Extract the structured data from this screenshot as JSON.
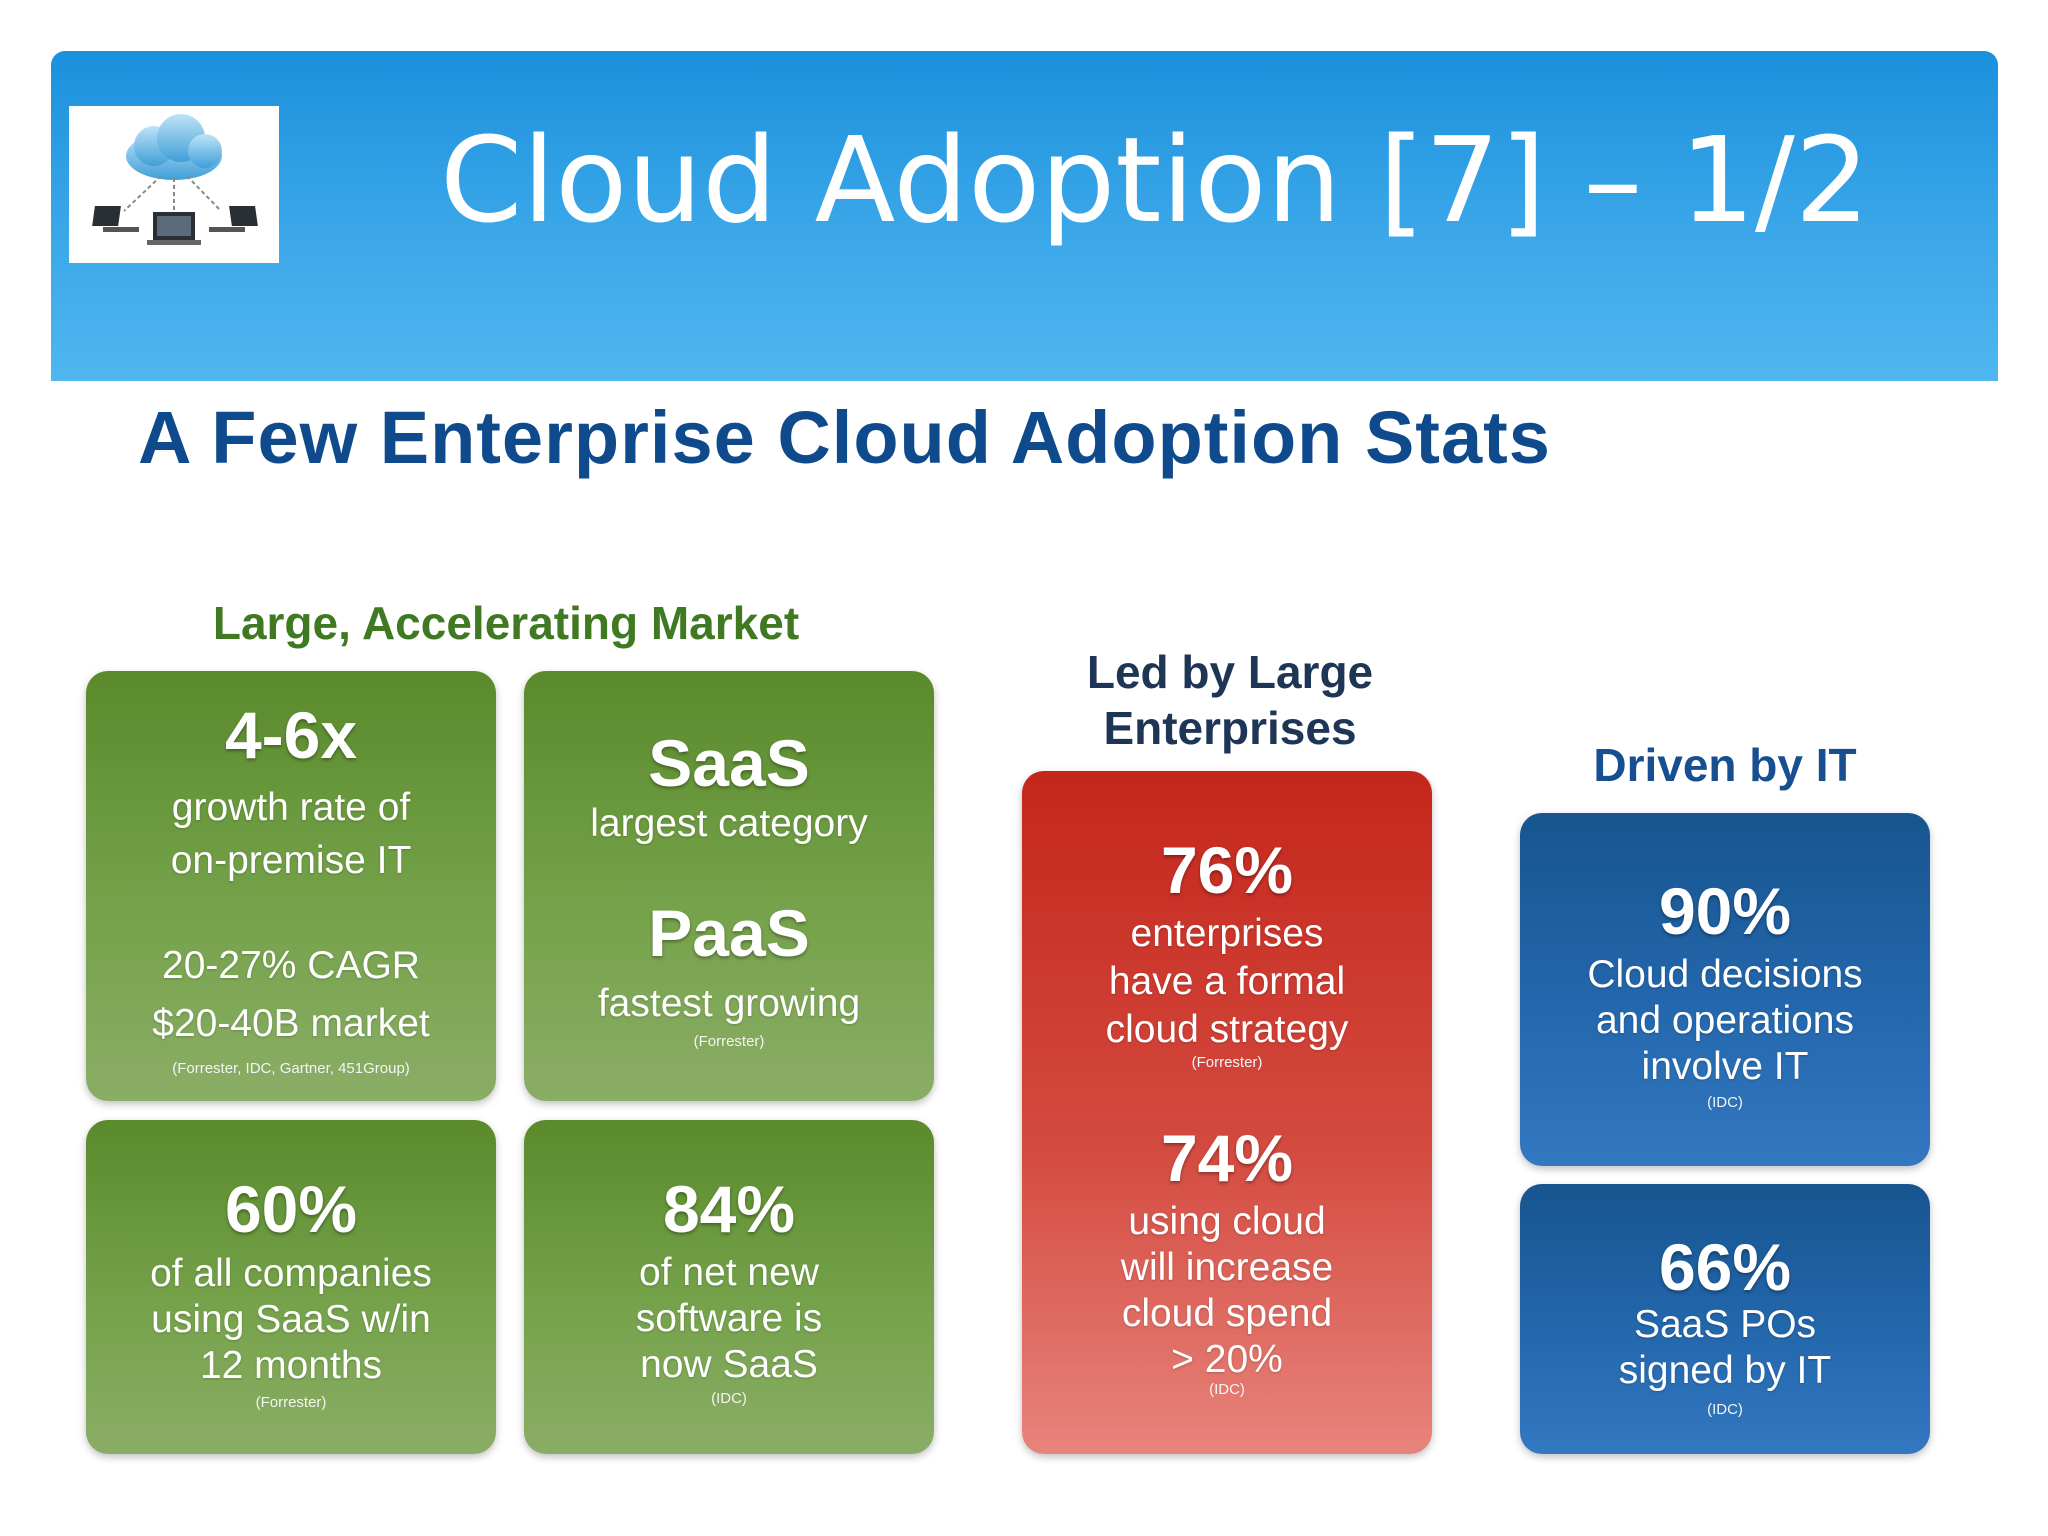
{
  "slide": {
    "title": "Cloud Adoption [7] – 1/2",
    "logo_icon": "cloud-network-icon"
  },
  "infographic": {
    "title": "A Few Enterprise Cloud Adoption Stats",
    "sections": {
      "market": {
        "heading": "Large, Accelerating Market"
      },
      "enterprises": {
        "heading_line1": "Led by Large",
        "heading_line2": "Enterprises"
      },
      "it": {
        "heading": "Driven by IT"
      }
    },
    "cards": {
      "growth": {
        "big": "4-6x",
        "line1": "growth rate of",
        "line2": "on-premise IT",
        "line3": "20-27% CAGR",
        "line4": "$20-40B market",
        "source": "(Forrester, IDC, Gartner, 451Group)"
      },
      "saas_paas": {
        "big1": "SaaS",
        "line1": "largest category",
        "big2": "PaaS",
        "line2": "fastest growing",
        "source": "(Forrester)"
      },
      "companies": {
        "big": "60%",
        "line1": "of all companies",
        "line2": "using SaaS w/in",
        "line3": "12 months",
        "source": "(Forrester)"
      },
      "software": {
        "big": "84%",
        "line1": "of net new",
        "line2": "software is",
        "line3": "now SaaS",
        "source": "(IDC)"
      },
      "enterprises": {
        "big1": "76%",
        "a1": "enterprises",
        "a2": "have a formal",
        "a3": "cloud strategy",
        "source1": "(Forrester)",
        "big2": "74%",
        "b1": "using cloud",
        "b2": "will increase",
        "b3": "cloud spend",
        "b4": "> 20%",
        "source2": "(IDC)"
      },
      "decisions": {
        "big": "90%",
        "line1": "Cloud decisions",
        "line2": "and operations",
        "line3": "involve IT",
        "source": "(IDC)"
      },
      "pos": {
        "big": "66%",
        "line1": "SaaS POs",
        "line2": "signed by IT",
        "source": "(IDC)"
      }
    }
  }
}
